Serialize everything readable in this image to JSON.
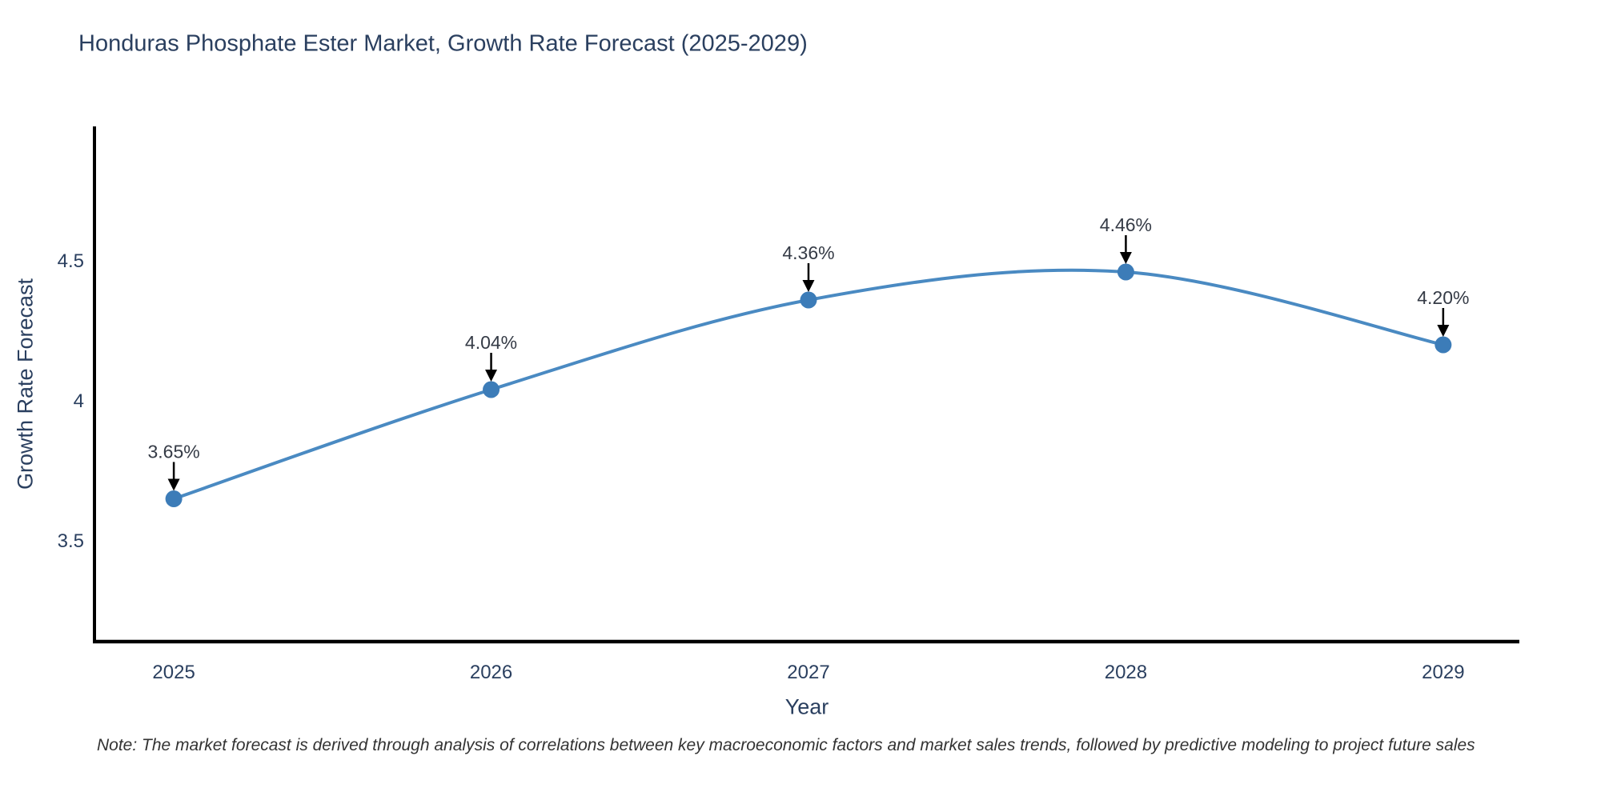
{
  "note": "Note: The market forecast is derived through analysis of correlations between key macroeconomic factors and market sales trends, followed by predictive modeling to project future sales",
  "chart_data": {
    "type": "line",
    "title": "Honduras Phosphate Ester Market, Growth Rate Forecast (2025-2029)",
    "xlabel": "Year",
    "ylabel": "Growth Rate Forecast",
    "x": [
      2025,
      2026,
      2027,
      2028,
      2029
    ],
    "series": [
      {
        "name": "Growth Rate Forecast",
        "values": [
          3.65,
          4.04,
          4.36,
          4.46,
          4.2
        ]
      }
    ],
    "point_labels": [
      "3.65%",
      "4.04%",
      "4.36%",
      "4.46%",
      "4.20%"
    ],
    "xticks": [
      "2025",
      "2026",
      "2027",
      "2028",
      "2029"
    ],
    "yticks": [
      3.5,
      4,
      4.5
    ],
    "ytick_labels": [
      "3.5",
      "4",
      "4.5"
    ],
    "xlim": [
      2024.75,
      2029.24
    ],
    "ylim": [
      3.14,
      4.98
    ],
    "line_shape": "spline",
    "grid": false,
    "legend": "none",
    "colors": {
      "line": "#4a8ac2",
      "marker": "#3c7cb8",
      "axis": "#000000",
      "arrow": "#000000",
      "tick_text": "#2a3f5f",
      "annotation_text": "#353b46",
      "title_text": "#2a3f5f",
      "background": "#ffffff"
    }
  }
}
